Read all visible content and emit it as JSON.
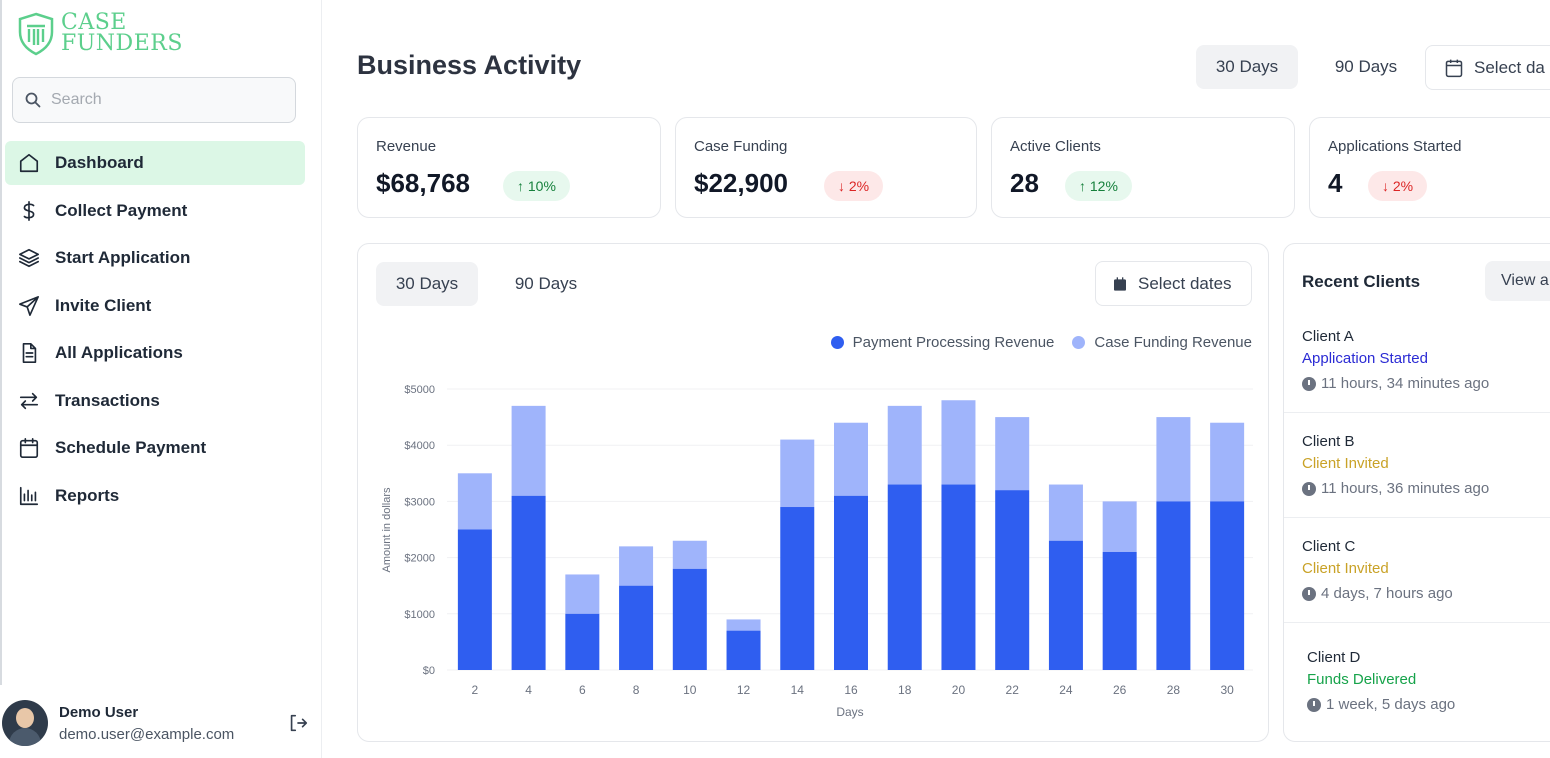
{
  "app": {
    "logo_line1": "CASE",
    "logo_line2": "FUNDERS"
  },
  "search": {
    "placeholder": "Search"
  },
  "sidebar": {
    "items": [
      {
        "label": "Dashboard",
        "icon": "home-icon",
        "active": true
      },
      {
        "label": "Collect Payment",
        "icon": "dollar-icon"
      },
      {
        "label": "Start Application",
        "icon": "layers-icon"
      },
      {
        "label": "Invite Client",
        "icon": "send-icon"
      },
      {
        "label": "All Applications",
        "icon": "file-icon"
      },
      {
        "label": "Transactions",
        "icon": "arrows-icon"
      },
      {
        "label": "Schedule Payment",
        "icon": "calendar-icon"
      },
      {
        "label": "Reports",
        "icon": "bar-chart-icon"
      }
    ]
  },
  "user": {
    "name": "Demo User",
    "email": "demo.user@example.com"
  },
  "header": {
    "title": "Business Activity",
    "range_30": "30 Days",
    "range_90": "90 Days",
    "select_dates": "Select da"
  },
  "stats": [
    {
      "label": "Revenue",
      "value": "$68,768",
      "change": "↑ 10%",
      "trend": "up"
    },
    {
      "label": "Case Funding",
      "value": "$22,900",
      "change": "↓ 2%",
      "trend": "down"
    },
    {
      "label": "Active Clients",
      "value": "28",
      "change": "↑ 12%",
      "trend": "up"
    },
    {
      "label": "Applications Started",
      "value": "4",
      "change": "↓ 2%",
      "trend": "down"
    }
  ],
  "chart_panel": {
    "range_30": "30 Days",
    "range_90": "90 Days",
    "select_dates": "Select dates"
  },
  "colors": {
    "accent_green": "#5ccf8c",
    "series_dark": "#2f5ef0",
    "series_light": "#9fb4fb"
  },
  "chart_data": {
    "type": "bar",
    "stacked": true,
    "xlabel": "Days",
    "ylabel": "Amount in dollars",
    "ylim": [
      0,
      5000
    ],
    "yticks": [
      "$0",
      "$1000",
      "$2000",
      "$3000",
      "$4000",
      "$5000"
    ],
    "categories": [
      "2",
      "4",
      "6",
      "8",
      "10",
      "12",
      "14",
      "16",
      "18",
      "20",
      "22",
      "24",
      "26",
      "28",
      "30"
    ],
    "series": [
      {
        "name": "Payment Processing Revenue",
        "values": [
          2500,
          3100,
          1000,
          1500,
          1800,
          700,
          2900,
          3100,
          3300,
          3300,
          3200,
          2300,
          2100,
          3000,
          3000
        ]
      },
      {
        "name": "Case Funding Revenue",
        "values": [
          1000,
          1600,
          700,
          700,
          500,
          200,
          1200,
          1300,
          1400,
          1500,
          1300,
          1000,
          900,
          1500,
          1400
        ]
      }
    ],
    "legend": "top-right",
    "grid": true
  },
  "recent_clients": {
    "title": "Recent Clients",
    "view_all": "View a",
    "items": [
      {
        "name": "Client A",
        "status": "Application Started",
        "status_color": "#2b2bd4",
        "time": "11 hours, 34 minutes ago"
      },
      {
        "name": "Client B",
        "status": "Client Invited",
        "status_color": "#c9a227",
        "time": "11 hours, 36 minutes ago"
      },
      {
        "name": "Client C",
        "status": "Client Invited",
        "status_color": "#c9a227",
        "time": "4 days, 7 hours ago"
      },
      {
        "name": "Client D",
        "status": "Funds Delivered",
        "status_color": "#16a34a",
        "time": "1 week, 5 days ago"
      }
    ]
  }
}
